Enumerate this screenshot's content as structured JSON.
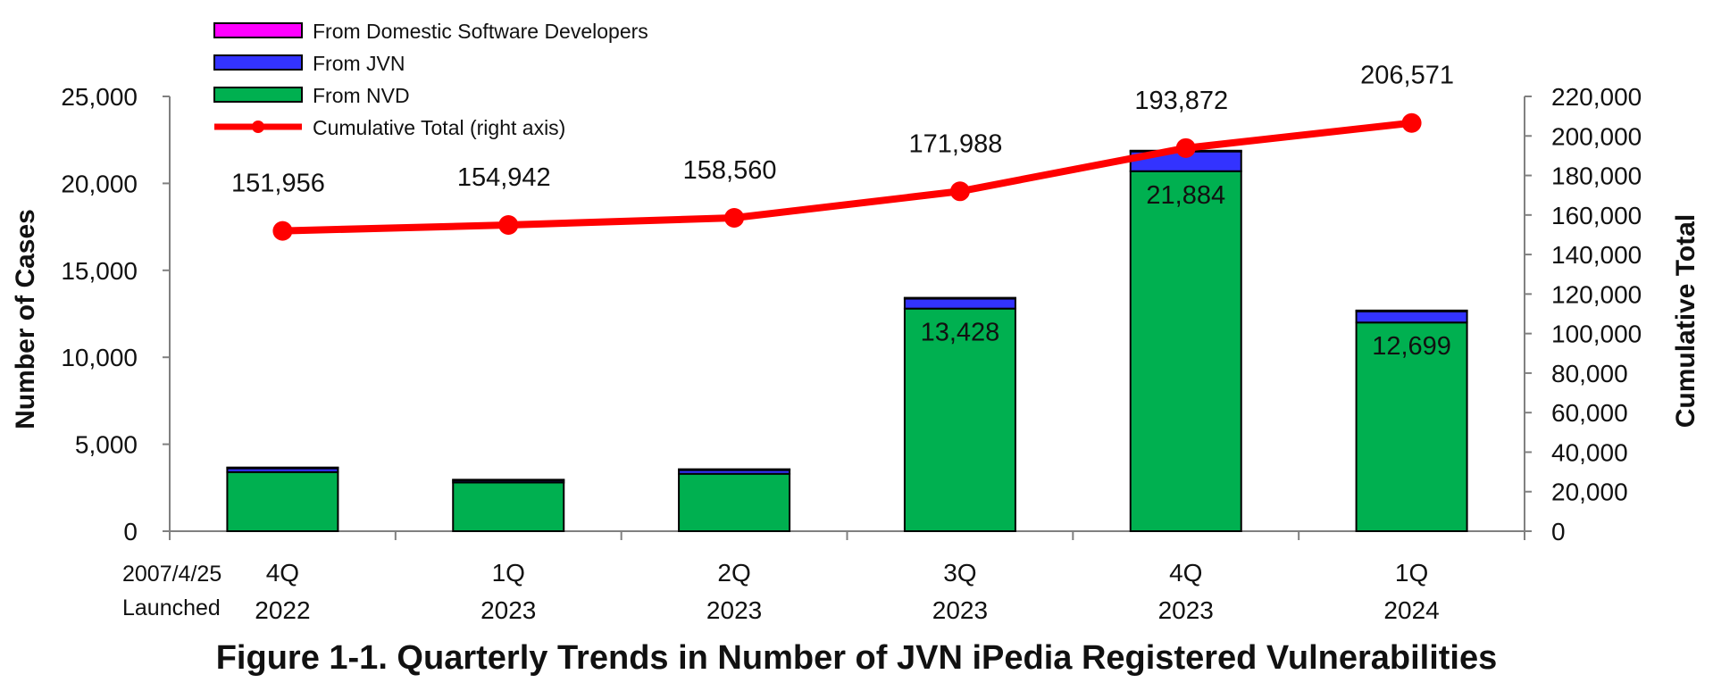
{
  "figure_caption": "Figure 1-1. Quarterly Trends in Number of JVN iPedia Registered Vulnerabilities",
  "launch_note": [
    "2007/4/25",
    "Launched"
  ],
  "colors": {
    "domestic": "#ff00ff",
    "jvn": "#3333ff",
    "nvd": "#00b050",
    "cumulative": "#ff0000",
    "axis": "#808080"
  },
  "chart_data": {
    "type": "bar",
    "stacked": true,
    "title": "",
    "categories": [
      {
        "quarter": "4Q",
        "year": "2022"
      },
      {
        "quarter": "1Q",
        "year": "2023"
      },
      {
        "quarter": "2Q",
        "year": "2023"
      },
      {
        "quarter": "3Q",
        "year": "2023"
      },
      {
        "quarter": "4Q",
        "year": "2023"
      },
      {
        "quarter": "1Q",
        "year": "2024"
      }
    ],
    "series": [
      {
        "key": "nvd",
        "name": "From NVD",
        "values": [
          3400,
          2800,
          3300,
          12800,
          20700,
          12000
        ]
      },
      {
        "key": "jvn",
        "name": "From JVN",
        "values": [
          250,
          150,
          250,
          600,
          1150,
          650
        ]
      },
      {
        "key": "domestic",
        "name": "From Domestic Software Developers",
        "values": [
          10,
          10,
          10,
          20,
          30,
          40
        ]
      }
    ],
    "bar_totals": [
      null,
      null,
      null,
      "13,428",
      "21,884",
      "12,699"
    ],
    "line": {
      "name": "Cumulative Total (right axis)",
      "values": [
        151956,
        154942,
        158560,
        171988,
        193872,
        206571
      ],
      "labels": [
        "151,956",
        "154,942",
        "158,560",
        "171,988",
        "193,872",
        "206,571"
      ]
    },
    "ylabel": "Number of Cases",
    "y2label": "Cumulative  Total",
    "ylim": [
      0,
      25000
    ],
    "yticks": [
      0,
      5000,
      10000,
      15000,
      20000,
      25000
    ],
    "ytick_labels": [
      "0",
      "5,000",
      "10,000",
      "15,000",
      "20,000",
      "25,000"
    ],
    "y2lim": [
      0,
      220000
    ],
    "y2ticks": [
      0,
      20000,
      40000,
      60000,
      80000,
      100000,
      120000,
      140000,
      160000,
      180000,
      200000,
      220000
    ],
    "y2tick_labels": [
      "0",
      "20,000",
      "40,000",
      "60,000",
      "80,000",
      "100,000",
      "120,000",
      "140,000",
      "160,000",
      "180,000",
      "200,000",
      "220,000"
    ],
    "legend": [
      {
        "key": "domestic",
        "label": "From Domestic Software Developers",
        "kind": "box"
      },
      {
        "key": "jvn",
        "label": "From JVN",
        "kind": "box"
      },
      {
        "key": "nvd",
        "label": "From NVD",
        "kind": "box"
      },
      {
        "key": "cumulative",
        "label": "Cumulative Total (right axis)",
        "kind": "line"
      }
    ],
    "legend_position": "top-left"
  }
}
